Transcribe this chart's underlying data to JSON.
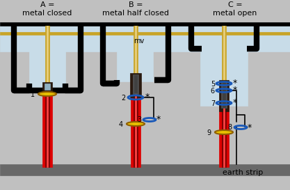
{
  "bg_color": "#c0c0c0",
  "title_A": "A =\nmetal closed",
  "title_B": "B =\nmetal half closed",
  "title_C": "C =\nmetal open",
  "mv_label": "mv",
  "earth_label": "earth strip",
  "black": "#000000",
  "gold": "#c8a428",
  "red": "#dd0000",
  "dark_red": "#7a0000",
  "light_blue": "#c8dce8",
  "blue": "#1858b8",
  "yellow": "#e8c000",
  "ground_col": "#686868",
  "housing": "#2a1a10",
  "gray_inner": "#505050"
}
